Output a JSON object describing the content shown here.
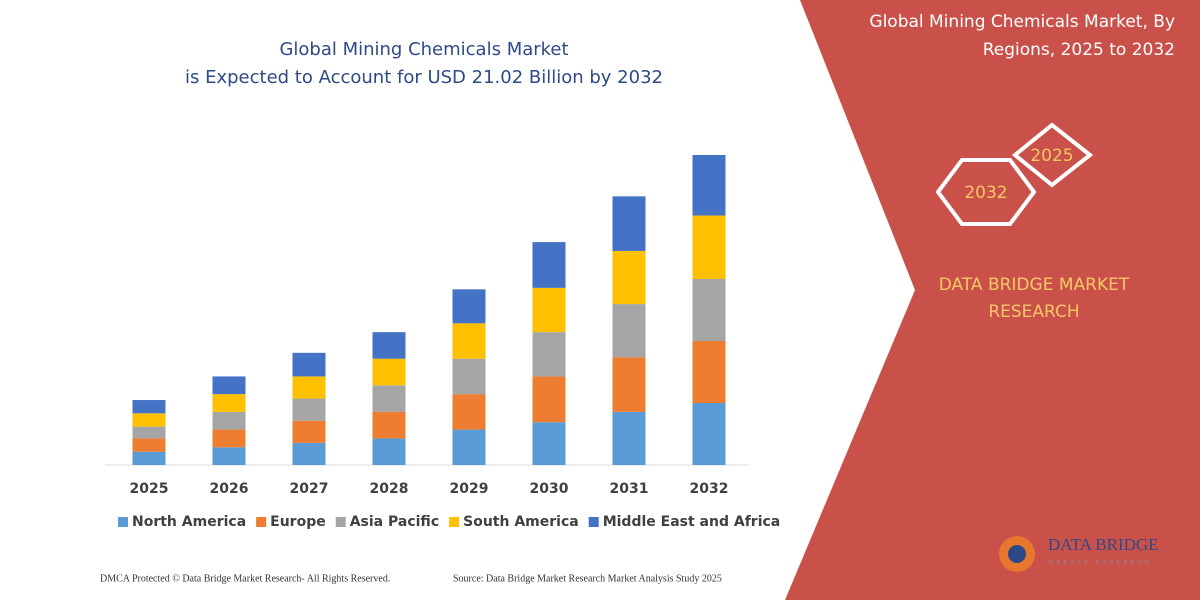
{
  "chart_data": {
    "type": "stacked_bar",
    "title": [
      "Global Mining Chemicals Market",
      "is Expected to Account for USD 21.02 Billion by 2032"
    ],
    "categories": [
      "2025",
      "2026",
      "2027",
      "2028",
      "2029",
      "2030",
      "2031",
      "2032"
    ],
    "series": [
      {
        "name": "North America",
        "color": "#5b9bd5",
        "values": [
          0.9,
          1.2,
          1.5,
          1.8,
          2.4,
          2.9,
          3.6,
          4.2
        ]
      },
      {
        "name": "Europe",
        "color": "#ed7d31",
        "values": [
          0.9,
          1.2,
          1.5,
          1.8,
          2.4,
          3.1,
          3.7,
          4.2
        ]
      },
      {
        "name": "Asia Pacific",
        "color": "#a5a5a5",
        "values": [
          0.8,
          1.2,
          1.5,
          1.8,
          2.4,
          3.0,
          3.6,
          4.2
        ]
      },
      {
        "name": "South America",
        "color": "#ffc000",
        "values": [
          0.9,
          1.2,
          1.5,
          1.8,
          2.4,
          3.0,
          3.6,
          4.3
        ]
      },
      {
        "name": "Middle East and Africa",
        "color": "#4472c4",
        "values": [
          0.9,
          1.2,
          1.6,
          1.8,
          2.3,
          3.1,
          3.7,
          4.1
        ]
      }
    ],
    "legend": "bottom"
  },
  "panel": {
    "title": [
      "Global Mining Chemicals Market, By",
      "Regions, 2025 to 2032"
    ],
    "hexagons": [
      "2025",
      "2032"
    ],
    "brand": [
      "DATA BRIDGE MARKET",
      "RESEARCH"
    ]
  },
  "footer": {
    "copyright": "DMCA Protected © Data Bridge Market Research- All Rights Reserved.",
    "source": "Source: Data Bridge Market Research Market Analysis Study 2025"
  },
  "logo": {
    "name": "DATA BRIDGE",
    "tagline": "MARKET RESEARCH"
  }
}
